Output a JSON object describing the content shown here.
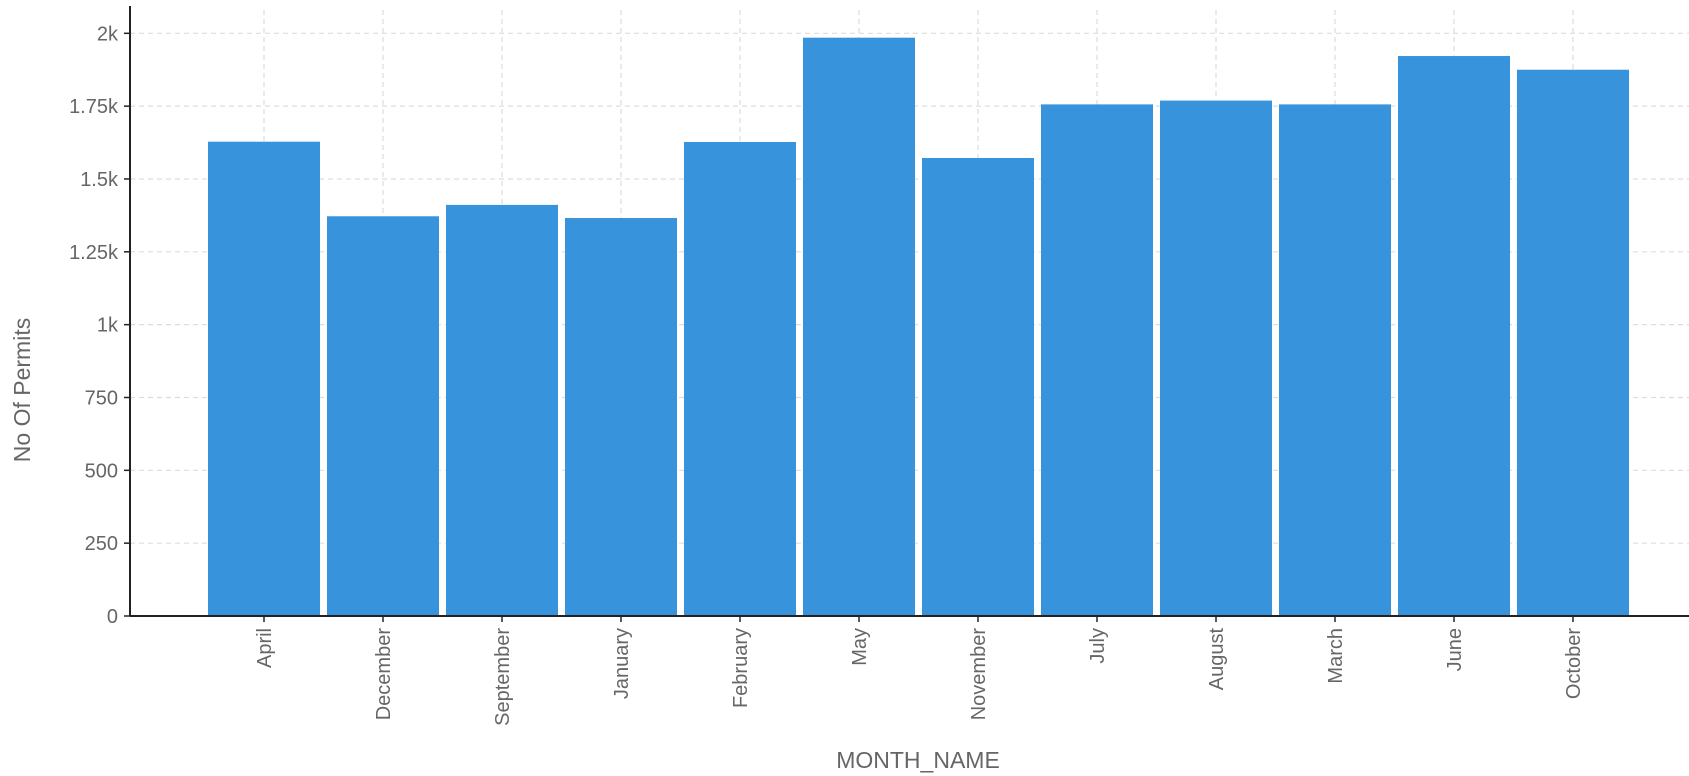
{
  "chart_data": {
    "type": "bar",
    "title": "",
    "xlabel": "MONTH_NAME",
    "ylabel": "No Of Permits",
    "categories": [
      "April",
      "December",
      "September",
      "January",
      "February",
      "May",
      "November",
      "July",
      "August",
      "March",
      "June",
      "October"
    ],
    "values": [
      1628,
      1372,
      1411,
      1366,
      1627,
      1985,
      1572,
      1756,
      1769,
      1756,
      1922,
      1875
    ],
    "ylim": [
      0,
      2080
    ],
    "yticks": [
      0,
      250,
      500,
      750,
      1000,
      1250,
      1500,
      1750,
      2000
    ],
    "ytick_labels": [
      "0",
      "250",
      "500",
      "750",
      "1k",
      "1.25k",
      "1.5k",
      "1.75k",
      "2k"
    ],
    "grid": true,
    "legend": "none",
    "colors": {
      "bar": "#3793db",
      "grid": "#dddddd",
      "axis": "#222222",
      "text": "#666666"
    }
  }
}
